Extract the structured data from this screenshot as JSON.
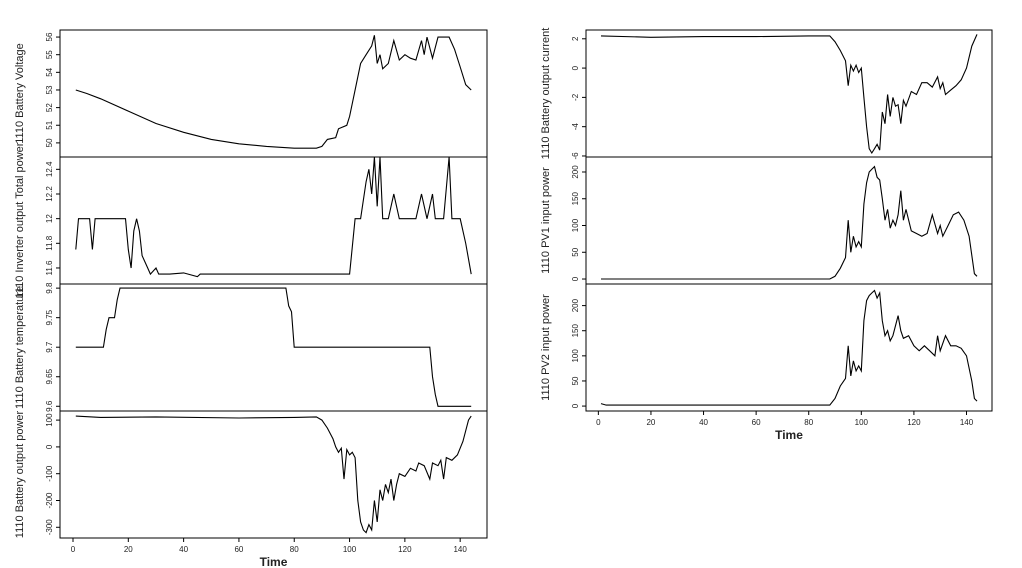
{
  "chart_data": [
    {
      "type": "line",
      "ylabel": "1110 Battery Voltage",
      "color": "#000000",
      "xlim": [
        -4.7,
        149.7
      ],
      "ylim": [
        49.2,
        56.4
      ],
      "yticks": [
        50,
        51,
        52,
        53,
        54,
        55,
        56
      ],
      "x": [
        1,
        5,
        10,
        20,
        30,
        40,
        50,
        60,
        70,
        80,
        88,
        90,
        92,
        95,
        96,
        99,
        100,
        102,
        104,
        106,
        108,
        109,
        110,
        111,
        112,
        114,
        116,
        118,
        120,
        122,
        124,
        126,
        127,
        128,
        130,
        132,
        136,
        138,
        140,
        142,
        144
      ],
      "values": [
        53,
        52.8,
        52.5,
        51.8,
        51.1,
        50.6,
        50.2,
        49.95,
        49.8,
        49.7,
        49.7,
        49.8,
        50.2,
        50.3,
        50.8,
        51,
        51.5,
        53,
        54.5,
        55,
        55.5,
        56.1,
        54.5,
        55,
        54.2,
        54.5,
        55.8,
        54.7,
        55,
        54.8,
        54.7,
        55.8,
        55,
        56,
        54.8,
        56,
        56,
        55.3,
        54.3,
        53.3,
        53
      ]
    },
    {
      "type": "line",
      "ylabel": "1110 Inverter output Total power",
      "color": "#000000",
      "xlim": [
        -4.7,
        149.7
      ],
      "ylim": [
        11.47,
        12.5
      ],
      "yticks": [
        11.6,
        11.8,
        12.0,
        12.2,
        12.4
      ],
      "x": [
        1,
        2,
        6,
        7,
        8,
        19,
        20,
        21,
        22,
        23,
        24,
        25,
        27,
        28,
        30,
        31,
        33,
        35,
        40,
        45,
        46,
        60,
        80,
        90,
        100,
        102,
        104,
        106,
        107,
        108,
        109,
        110,
        111,
        112,
        114,
        116,
        118,
        124,
        126,
        128,
        130,
        131,
        134,
        136,
        137,
        140,
        142,
        144
      ],
      "values": [
        11.75,
        12,
        12,
        11.75,
        12,
        12,
        11.75,
        11.6,
        11.9,
        12,
        11.9,
        11.7,
        11.6,
        11.55,
        11.6,
        11.55,
        11.55,
        11.55,
        11.56,
        11.53,
        11.55,
        11.55,
        11.55,
        11.55,
        11.55,
        12,
        12,
        12.3,
        12.4,
        12.2,
        12.5,
        12.1,
        12.5,
        12,
        12,
        12.2,
        12,
        12,
        12.2,
        12,
        12.2,
        12,
        12,
        12.5,
        12,
        12,
        11.8,
        11.55
      ]
    },
    {
      "type": "line",
      "ylabel": "1110 Battery temperature",
      "color": "#000000",
      "xlim": [
        -4.7,
        149.7
      ],
      "ylim": [
        9.592,
        9.807
      ],
      "yticks": [
        9.6,
        9.65,
        9.7,
        9.75,
        9.8
      ],
      "x": [
        1,
        11,
        12,
        13,
        15,
        16,
        17,
        77,
        78,
        79,
        80,
        129,
        130,
        131,
        132,
        144
      ],
      "values": [
        9.7,
        9.7,
        9.73,
        9.75,
        9.75,
        9.78,
        9.8,
        9.8,
        9.77,
        9.76,
        9.7,
        9.7,
        9.65,
        9.62,
        9.6,
        9.6
      ]
    },
    {
      "type": "line",
      "ylabel": "1110 Battery output power",
      "xlabel": "Time",
      "color": "#000000",
      "xlim": [
        -4.7,
        149.7
      ],
      "ylim": [
        -340,
        134
      ],
      "yticks": [
        -300,
        -200,
        -100,
        0,
        100
      ],
      "xticks": [
        0,
        20,
        40,
        60,
        80,
        100,
        120,
        140
      ],
      "x": [
        1,
        10,
        30,
        60,
        80,
        88,
        90,
        92,
        94,
        95,
        96,
        97,
        98,
        99,
        100,
        101,
        102,
        103,
        104,
        105,
        106,
        107,
        108,
        109,
        110,
        111,
        112,
        113,
        114,
        115,
        116,
        117,
        118,
        120,
        122,
        124,
        125,
        127,
        129,
        130,
        132,
        133,
        134,
        135,
        137,
        139,
        141,
        143,
        144
      ],
      "values": [
        115,
        110,
        112,
        108,
        110,
        112,
        100,
        70,
        30,
        0,
        -20,
        -5,
        -120,
        -10,
        -30,
        -20,
        -40,
        -200,
        -280,
        -310,
        -320,
        -290,
        -310,
        -200,
        -280,
        -160,
        -200,
        -140,
        -170,
        -120,
        -200,
        -140,
        -100,
        -110,
        -80,
        -90,
        -60,
        -70,
        -120,
        -60,
        -70,
        -50,
        -120,
        -40,
        -50,
        -30,
        20,
        100,
        115
      ]
    },
    {
      "type": "line",
      "ylabel": "1110 Battery output current",
      "color": "#000000",
      "xlim": [
        -4.7,
        149.7
      ],
      "ylim": [
        -6.07,
        2.6
      ],
      "yticks": [
        -6,
        -4,
        -2,
        0,
        2
      ],
      "x": [
        1,
        20,
        40,
        60,
        80,
        88,
        90,
        92,
        94,
        95,
        96,
        97,
        98,
        99,
        100,
        101,
        102,
        103,
        104,
        105,
        106,
        107,
        108,
        109,
        110,
        111,
        112,
        113,
        114,
        115,
        116,
        117,
        119,
        121,
        123,
        125,
        127,
        129,
        130,
        131,
        132,
        134,
        136,
        138,
        140,
        142,
        144
      ],
      "values": [
        2.2,
        2.1,
        2.15,
        2.15,
        2.2,
        2.2,
        1.8,
        1.2,
        0.5,
        -1.2,
        0.2,
        -0.2,
        0.2,
        -0.3,
        0,
        -2,
        -4,
        -5.5,
        -5.8,
        -5.5,
        -5.2,
        -5.6,
        -3,
        -3.8,
        -1.8,
        -3.3,
        -2,
        -2.6,
        -2.5,
        -3.8,
        -2.2,
        -2.6,
        -1.6,
        -1.8,
        -1,
        -1,
        -1.3,
        -0.6,
        -1.4,
        -1,
        -1.8,
        -1.5,
        -1.2,
        -0.8,
        0,
        1.5,
        2.3
      ]
    },
    {
      "type": "line",
      "ylabel": "1110 PV1 input power",
      "color": "#000000",
      "xlim": [
        -4.7,
        149.7
      ],
      "ylim": [
        -9.3,
        228
      ],
      "yticks": [
        0,
        50,
        100,
        150,
        200
      ],
      "x": [
        1,
        88,
        90,
        92,
        94,
        95,
        96,
        97,
        98,
        99,
        100,
        101,
        102,
        103,
        104,
        105,
        106,
        107,
        108,
        109,
        110,
        111,
        112,
        113,
        114,
        115,
        116,
        117,
        119,
        121,
        123,
        125,
        127,
        129,
        130,
        131,
        133,
        135,
        137,
        139,
        141,
        143,
        144
      ],
      "values": [
        0,
        0,
        5,
        20,
        40,
        110,
        50,
        80,
        60,
        70,
        60,
        140,
        180,
        200,
        205,
        210,
        190,
        185,
        150,
        110,
        130,
        95,
        110,
        100,
        120,
        165,
        110,
        130,
        90,
        85,
        80,
        85,
        120,
        85,
        100,
        80,
        100,
        120,
        125,
        110,
        80,
        10,
        5
      ]
    },
    {
      "type": "line",
      "ylabel": "1110 PV2 input power",
      "xlabel": "Time",
      "color": "#000000",
      "xlim": [
        -4.7,
        149.7
      ],
      "ylim": [
        -9.8,
        243
      ],
      "yticks": [
        0,
        50,
        100,
        150,
        200
      ],
      "xticks": [
        0,
        20,
        40,
        60,
        80,
        100,
        120,
        140
      ],
      "x": [
        1,
        3,
        88,
        90,
        92,
        94,
        95,
        96,
        97,
        98,
        99,
        100,
        101,
        102,
        103,
        104,
        105,
        106,
        107,
        108,
        109,
        110,
        111,
        112,
        113,
        114,
        115,
        116,
        118,
        120,
        122,
        124,
        126,
        128,
        129,
        130,
        132,
        134,
        136,
        138,
        140,
        142,
        143,
        144
      ],
      "values": [
        5,
        2,
        2,
        15,
        40,
        55,
        120,
        60,
        90,
        70,
        80,
        70,
        170,
        210,
        220,
        225,
        230,
        215,
        225,
        170,
        140,
        150,
        130,
        140,
        160,
        180,
        150,
        135,
        140,
        120,
        110,
        120,
        110,
        100,
        140,
        110,
        140,
        120,
        120,
        115,
        100,
        50,
        15,
        10
      ]
    }
  ]
}
